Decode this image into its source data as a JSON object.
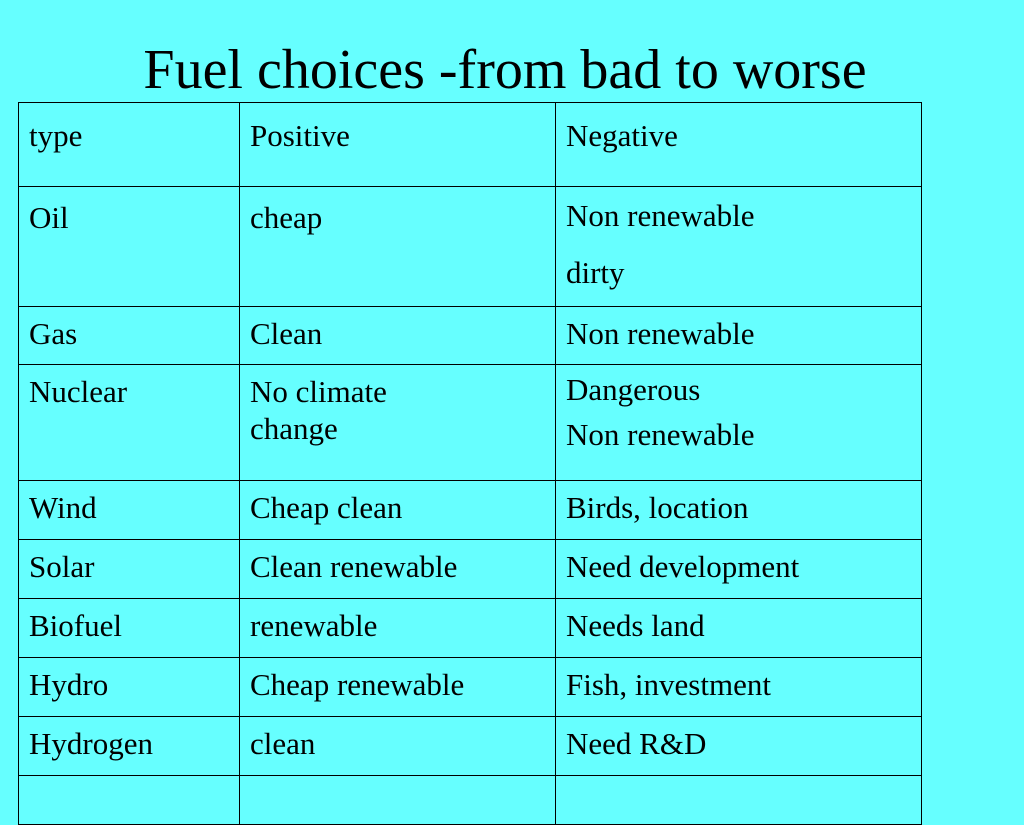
{
  "slide": {
    "title": "Fuel choices -from bad to worse"
  },
  "table": {
    "headers": [
      "type",
      "Positive",
      "Negative"
    ],
    "rows": [
      {
        "type": "Oil",
        "positive": [
          "cheap"
        ],
        "negative": [
          "Non renewable",
          "dirty"
        ]
      },
      {
        "type": "Gas",
        "positive": [
          "Clean"
        ],
        "negative": [
          "Non renewable"
        ]
      },
      {
        "type": "Nuclear",
        "positive": [
          "No climate",
          "change"
        ],
        "negative": [
          "Dangerous",
          "Non renewable"
        ]
      },
      {
        "type": "Wind",
        "positive": [
          "Cheap clean"
        ],
        "negative": [
          "Birds, location"
        ]
      },
      {
        "type": "Solar",
        "positive": [
          "Clean renewable"
        ],
        "negative": [
          "Need development"
        ]
      },
      {
        "type": "Biofuel",
        "positive": [
          "renewable"
        ],
        "negative": [
          "Needs land"
        ]
      },
      {
        "type": "Hydro",
        "positive": [
          "Cheap renewable"
        ],
        "negative": [
          "Fish, investment"
        ]
      },
      {
        "type": "Hydrogen",
        "positive": [
          "clean"
        ],
        "negative": [
          "Need R&D"
        ]
      }
    ]
  },
  "colors": {
    "background": "#66FFFF",
    "text": "#000000",
    "border": "#000000"
  }
}
